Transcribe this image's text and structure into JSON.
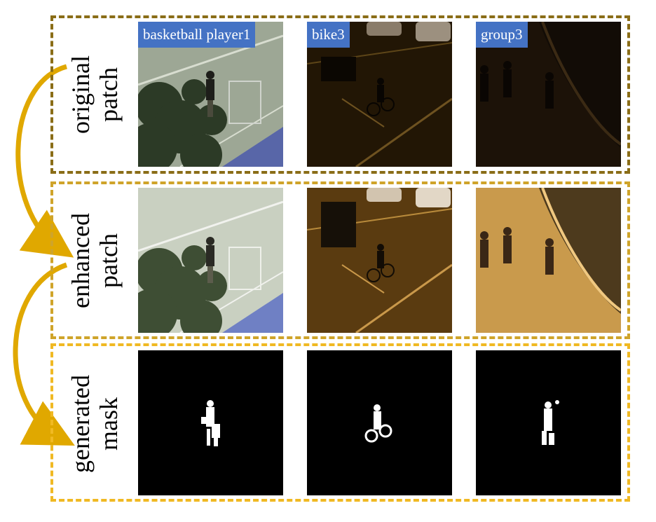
{
  "colors": {
    "row1_border": "#8a6d17",
    "row2_border": "#cfa42a",
    "row3_border": "#f0b923",
    "arrow": "#e0a800",
    "tag_background": "#4472c4",
    "mask_background": "#000000",
    "mask_foreground": "#ffffff"
  },
  "sequences": [
    "basketball player1",
    "bike3",
    "group3"
  ],
  "rows": [
    {
      "label_line1": "original",
      "label_line2": "patch"
    },
    {
      "label_line1": "enhanced",
      "label_line2": "patch"
    },
    {
      "label_line1": "generated",
      "label_line2": "mask"
    }
  ]
}
